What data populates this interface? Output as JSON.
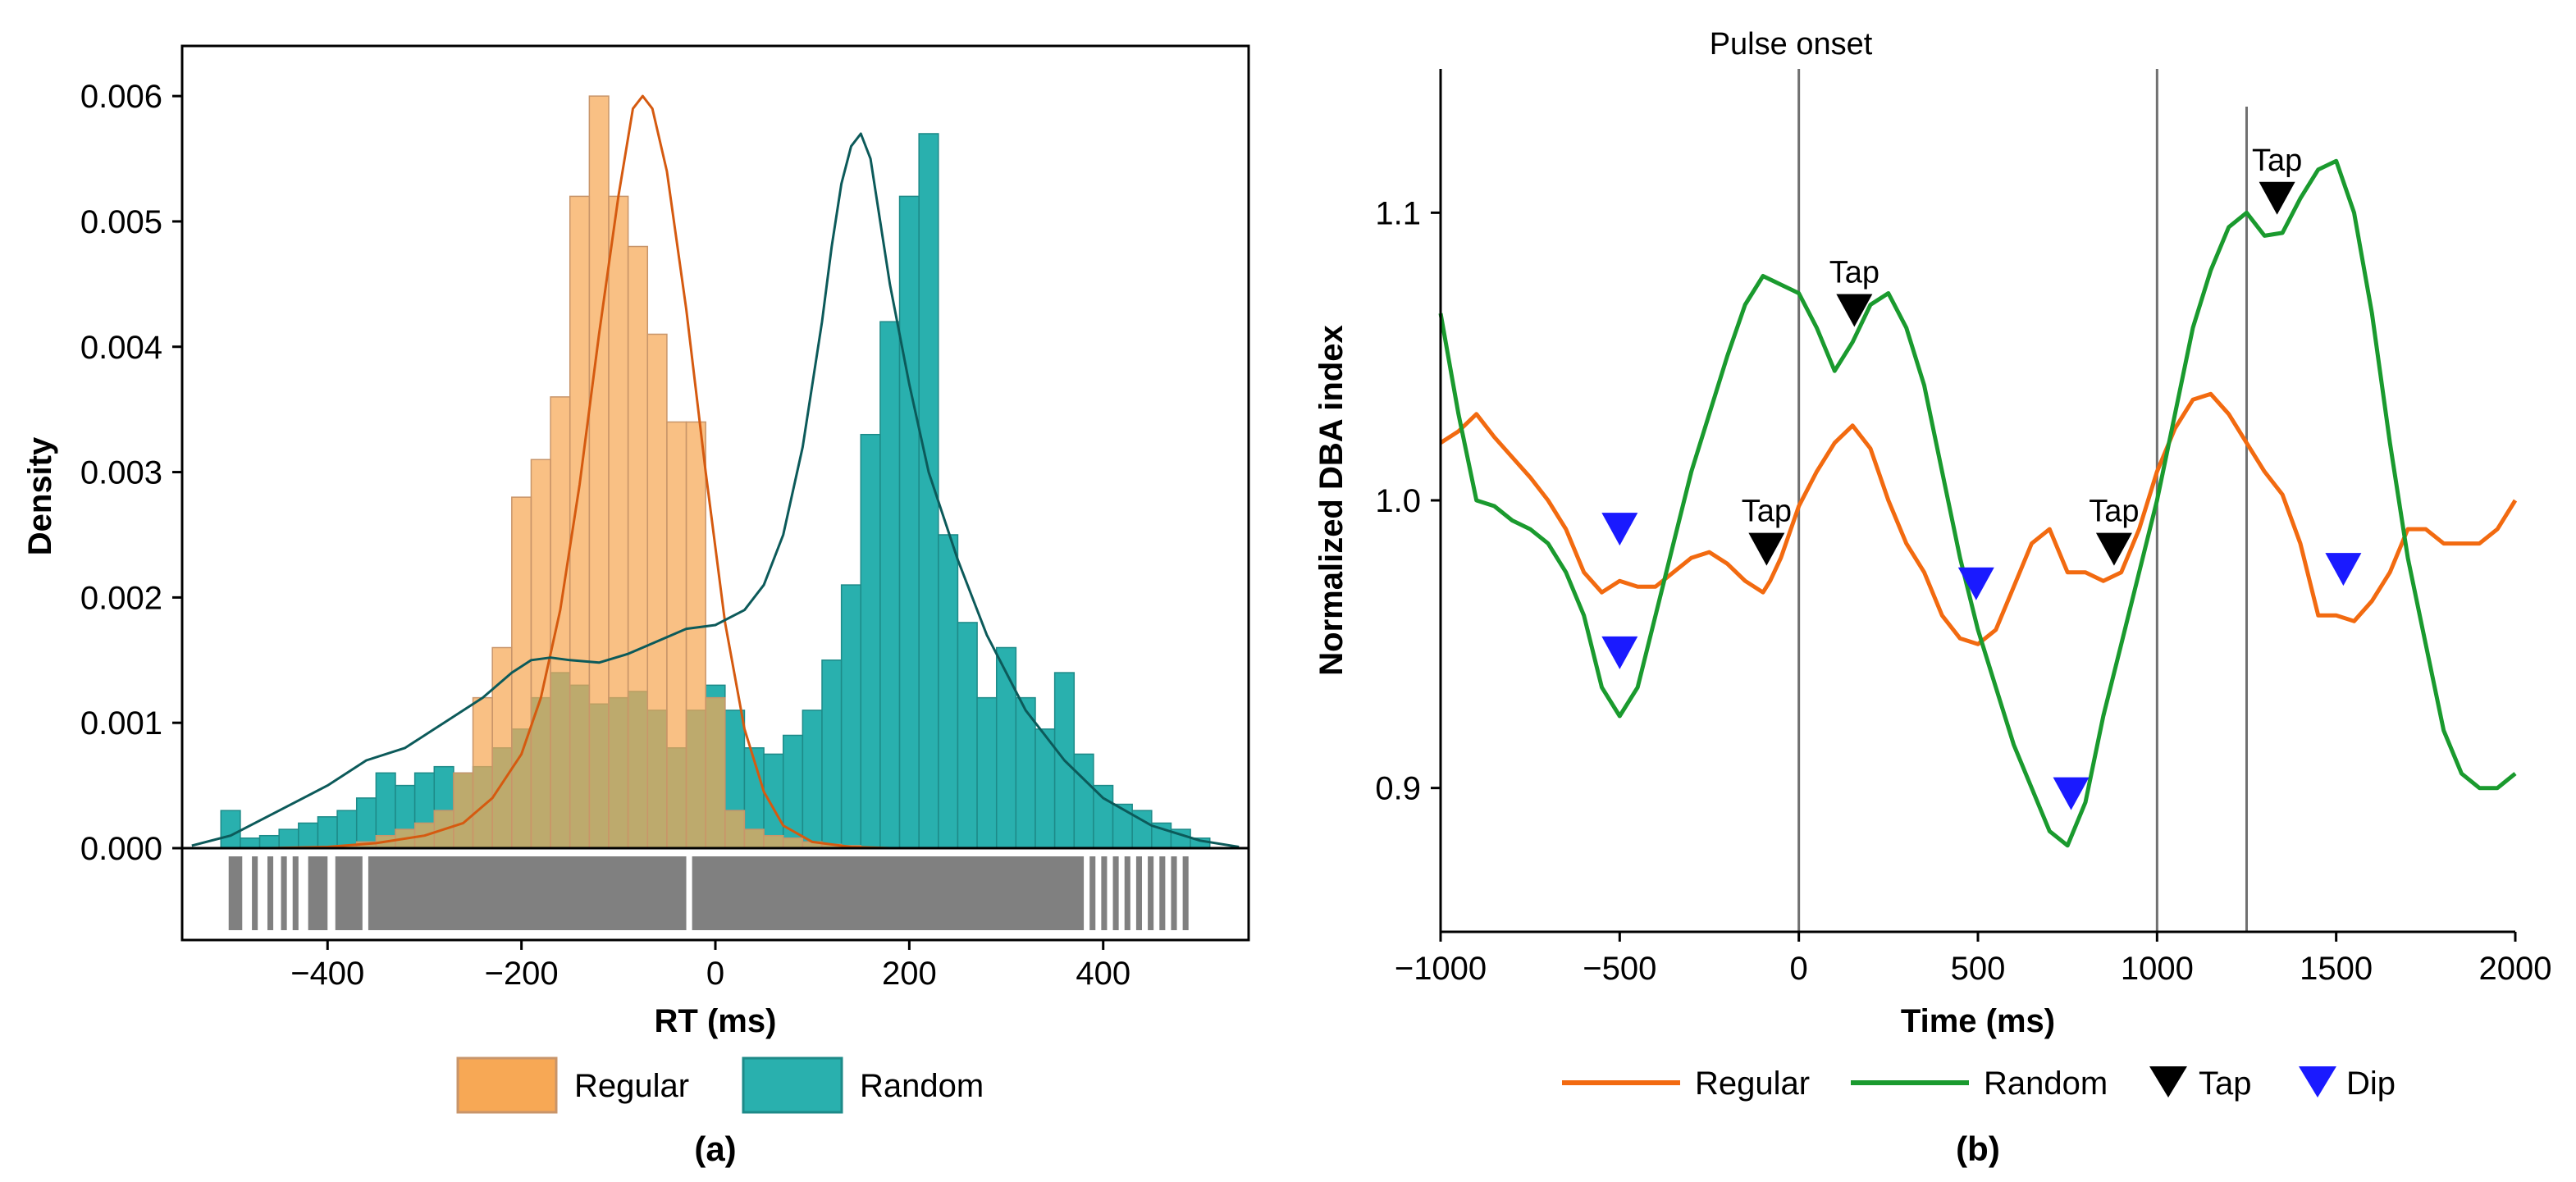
{
  "colors": {
    "regular_fill": "#f7a855",
    "regular_edge": "#c8956a",
    "regular_curve": "#d55a10",
    "random_fill": "#29b0ae",
    "random_edge": "#1d8a88",
    "random_curve": "#0c5a5a",
    "rug": "#808080",
    "regular_line": "#f26a10",
    "random_line": "#1a9a2e",
    "tap": "#000000",
    "dip": "#1a1aff",
    "vline": "#707070"
  },
  "chart_data": [
    {
      "type": "bar",
      "panel_label": "(a)",
      "title": "",
      "xlabel": "RT (ms)",
      "ylabel": "Density",
      "xlim": [
        -550,
        550
      ],
      "ylim": [
        0,
        0.0064
      ],
      "xticks": [
        -400,
        -200,
        0,
        200,
        400
      ],
      "xtick_labels": [
        "−400",
        "−200",
        "0",
        "200",
        "400"
      ],
      "yticks": [
        0,
        0.001,
        0.002,
        0.003,
        0.004,
        0.005,
        0.006
      ],
      "ytick_labels": [
        "0.000",
        "0.001",
        "0.002",
        "0.003",
        "0.004",
        "0.005",
        "0.006"
      ],
      "bin_start": -510,
      "bin_width": 20,
      "series": [
        {
          "name": "Regular",
          "values": [
            0,
            0,
            0,
            0,
            0,
            0,
            2e-05,
            5e-05,
            0.0001,
            0.00015,
            0.0002,
            0.0003,
            0.0006,
            0.0012,
            0.0016,
            0.0028,
            0.0031,
            0.0036,
            0.0052,
            0.006,
            0.0052,
            0.0048,
            0.0041,
            0.0034,
            0.0034,
            0.0012,
            0.0003,
            0.00015,
            0.0001,
            8e-05,
            5e-05,
            3e-05,
            2e-05,
            0,
            0,
            0,
            0,
            0,
            0,
            0,
            0,
            0,
            0,
            0,
            0,
            0,
            0,
            0,
            0,
            0,
            0
          ]
        },
        {
          "name": "Random",
          "values": [
            0.0003,
            8e-05,
            0.0001,
            0.00015,
            0.0002,
            0.00025,
            0.0003,
            0.0004,
            0.0006,
            0.0005,
            0.0006,
            0.00065,
            0.0006,
            0.00065,
            0.0008,
            0.00095,
            0.0012,
            0.0014,
            0.0013,
            0.00115,
            0.0012,
            0.00125,
            0.0011,
            0.0008,
            0.0011,
            0.0013,
            0.0011,
            0.0008,
            0.00075,
            0.0009,
            0.0011,
            0.0015,
            0.0021,
            0.0033,
            0.0042,
            0.0052,
            0.0057,
            0.0025,
            0.0018,
            0.0012,
            0.0016,
            0.0012,
            0.00095,
            0.0014,
            0.00075,
            0.0005,
            0.00035,
            0.0003,
            0.0002,
            0.00015,
            8e-05
          ]
        }
      ],
      "density_curves": [
        {
          "name": "Regular",
          "x": [
            -460,
            -400,
            -350,
            -300,
            -260,
            -230,
            -200,
            -180,
            -160,
            -140,
            -120,
            -100,
            -85,
            -75,
            -65,
            -50,
            -30,
            -10,
            10,
            30,
            50,
            70,
            100,
            140,
            180,
            220
          ],
          "y": [
            0,
            1e-05,
            4e-05,
            0.0001,
            0.0002,
            0.0004,
            0.00075,
            0.0012,
            0.0019,
            0.0029,
            0.0041,
            0.0052,
            0.0059,
            0.006,
            0.0059,
            0.0054,
            0.0043,
            0.003,
            0.0018,
            0.00095,
            0.00045,
            0.00018,
            5e-05,
            1e-05,
            0,
            0
          ]
        },
        {
          "name": "Random",
          "x": [
            -540,
            -500,
            -450,
            -400,
            -360,
            -320,
            -280,
            -240,
            -210,
            -190,
            -170,
            -150,
            -120,
            -90,
            -60,
            -30,
            0,
            30,
            50,
            70,
            90,
            110,
            120,
            130,
            140,
            150,
            160,
            170,
            180,
            200,
            220,
            250,
            280,
            320,
            360,
            400,
            450,
            500,
            540
          ],
          "y": [
            2e-05,
            0.0001,
            0.0003,
            0.0005,
            0.0007,
            0.0008,
            0.001,
            0.0012,
            0.0014,
            0.0015,
            0.00152,
            0.0015,
            0.00148,
            0.00155,
            0.00165,
            0.00175,
            0.00178,
            0.0019,
            0.0021,
            0.0025,
            0.0032,
            0.0042,
            0.0048,
            0.0053,
            0.0056,
            0.0057,
            0.0055,
            0.005,
            0.0045,
            0.0037,
            0.003,
            0.0023,
            0.0017,
            0.0011,
            0.0007,
            0.0004,
            0.00018,
            6e-05,
            1e-05
          ]
        }
      ],
      "rug_segments": [
        [
          -502,
          -488
        ],
        [
          -478,
          -472
        ],
        [
          -462,
          -456
        ],
        [
          -448,
          -442
        ],
        [
          -436,
          -430
        ],
        [
          -420,
          -400
        ],
        [
          -392,
          -364
        ],
        [
          -358,
          -30
        ],
        [
          -24,
          380
        ],
        [
          386,
          392
        ],
        [
          398,
          404
        ],
        [
          410,
          416
        ],
        [
          422,
          428
        ],
        [
          434,
          440
        ],
        [
          446,
          452
        ],
        [
          458,
          464
        ],
        [
          470,
          476
        ],
        [
          482,
          488
        ]
      ],
      "legend": [
        {
          "label": "Regular"
        },
        {
          "label": "Random"
        }
      ]
    },
    {
      "type": "line",
      "panel_label": "(b)",
      "title": "",
      "xlabel": "Time (ms)",
      "ylabel": "Normalized DBA index",
      "xlim": [
        -1000,
        2000
      ],
      "ylim": [
        0.85,
        1.15
      ],
      "xticks": [
        -1000,
        -500,
        0,
        500,
        1000,
        1500,
        2000
      ],
      "xtick_labels": [
        "−1000",
        "−500",
        "0",
        "500",
        "1000",
        "1500",
        "2000"
      ],
      "yticks": [
        0.9,
        1.0,
        1.1
      ],
      "ytick_labels": [
        "0.9",
        "1.0",
        "1.1"
      ],
      "vlines": [
        0,
        1000,
        1250
      ],
      "vline_label": "Pulse onset",
      "series": [
        {
          "name": "Regular",
          "x": [
            -1000,
            -950,
            -900,
            -850,
            -800,
            -750,
            -700,
            -650,
            -600,
            -550,
            -500,
            -450,
            -400,
            -350,
            -300,
            -250,
            -200,
            -150,
            -100,
            -80,
            -50,
            0,
            50,
            100,
            150,
            200,
            250,
            300,
            350,
            400,
            450,
            500,
            550,
            600,
            650,
            700,
            750,
            800,
            850,
            900,
            950,
            1000,
            1050,
            1100,
            1150,
            1200,
            1250,
            1300,
            1350,
            1400,
            1450,
            1500,
            1550,
            1600,
            1650,
            1700,
            1750,
            1800,
            1850,
            1900,
            1950,
            2000
          ],
          "y": [
            1.02,
            1.024,
            1.03,
            1.022,
            1.015,
            1.008,
            1.0,
            0.99,
            0.975,
            0.968,
            0.972,
            0.97,
            0.97,
            0.975,
            0.98,
            0.982,
            0.978,
            0.972,
            0.968,
            0.972,
            0.98,
            0.998,
            1.01,
            1.02,
            1.026,
            1.018,
            1.0,
            0.985,
            0.975,
            0.96,
            0.952,
            0.95,
            0.955,
            0.97,
            0.985,
            0.99,
            0.975,
            0.975,
            0.972,
            0.975,
            0.99,
            1.01,
            1.025,
            1.035,
            1.037,
            1.03,
            1.02,
            1.01,
            1.002,
            0.985,
            0.96,
            0.96,
            0.958,
            0.965,
            0.975,
            0.99,
            0.99,
            0.985,
            0.985,
            0.985,
            0.99,
            1.0
          ]
        },
        {
          "name": "Random",
          "x": [
            -1000,
            -950,
            -900,
            -850,
            -800,
            -750,
            -700,
            -650,
            -600,
            -550,
            -500,
            -450,
            -400,
            -350,
            -300,
            -250,
            -200,
            -150,
            -100,
            -50,
            0,
            50,
            100,
            150,
            200,
            250,
            300,
            350,
            400,
            450,
            500,
            550,
            600,
            650,
            700,
            750,
            800,
            850,
            900,
            950,
            1000,
            1050,
            1100,
            1150,
            1200,
            1250,
            1300,
            1350,
            1400,
            1450,
            1500,
            1550,
            1600,
            1650,
            1700,
            1750,
            1800,
            1850,
            1900,
            1950,
            2000
          ],
          "y": [
            1.065,
            1.03,
            1.0,
            0.998,
            0.993,
            0.99,
            0.985,
            0.975,
            0.96,
            0.935,
            0.925,
            0.935,
            0.96,
            0.985,
            1.01,
            1.03,
            1.05,
            1.068,
            1.078,
            1.075,
            1.072,
            1.06,
            1.045,
            1.055,
            1.068,
            1.072,
            1.06,
            1.04,
            1.01,
            0.98,
            0.955,
            0.935,
            0.915,
            0.9,
            0.885,
            0.88,
            0.895,
            0.925,
            0.95,
            0.975,
            1.0,
            1.03,
            1.06,
            1.08,
            1.095,
            1.1,
            1.092,
            1.093,
            1.105,
            1.115,
            1.118,
            1.1,
            1.065,
            1.02,
            0.98,
            0.95,
            0.92,
            0.905,
            0.9,
            0.9,
            0.905
          ]
        }
      ],
      "markers": [
        {
          "kind": "Tap",
          "x": -90,
          "y": 0.983,
          "label": "Tap"
        },
        {
          "kind": "Tap",
          "x": 155,
          "y": 1.066,
          "label": "Tap"
        },
        {
          "kind": "Tap",
          "x": 880,
          "y": 0.983,
          "label": "Tap"
        },
        {
          "kind": "Tap",
          "x": 1335,
          "y": 1.105,
          "label": "Tap"
        },
        {
          "kind": "Dip",
          "x": -500,
          "y": 0.99,
          "label": ""
        },
        {
          "kind": "Dip",
          "x": -500,
          "y": 0.947,
          "label": ""
        },
        {
          "kind": "Dip",
          "x": 495,
          "y": 0.971,
          "label": ""
        },
        {
          "kind": "Dip",
          "x": 760,
          "y": 0.898,
          "label": ""
        },
        {
          "kind": "Dip",
          "x": 1520,
          "y": 0.976,
          "label": ""
        }
      ],
      "legend": [
        {
          "label": "Regular"
        },
        {
          "label": "Random"
        },
        {
          "label": "Tap"
        },
        {
          "label": "Dip"
        }
      ]
    }
  ]
}
